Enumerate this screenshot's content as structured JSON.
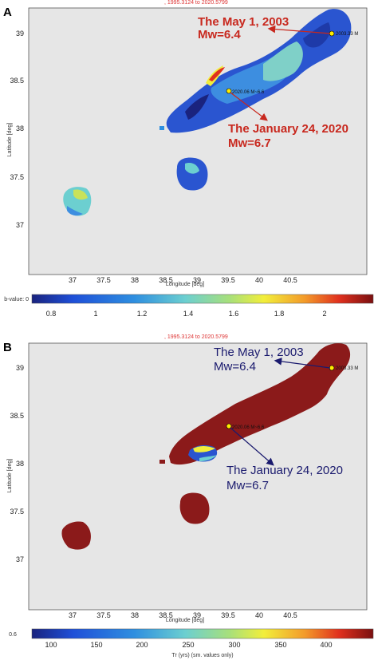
{
  "figure": {
    "panels": [
      {
        "id": "A",
        "letter": "A",
        "period": ", 1995.3124 to 2020.5799",
        "xlabel": "Longitude [deg]",
        "ylabel": "Latitude [deg]",
        "xticks": [
          "37",
          "37.5",
          "38",
          "38.5",
          "39",
          "39.5",
          "40",
          "40.5"
        ],
        "yticks": [
          "39",
          "38.5",
          "38",
          "37.5",
          "37"
        ],
        "colorbar": {
          "label": "b-value: 0",
          "ticks": [
            "0.8",
            "1",
            "1.2",
            "1.4",
            "1.6",
            "1.8",
            "2"
          ],
          "range": [
            0.7,
            2.2
          ]
        },
        "quakes": [
          {
            "lon": 40.5,
            "lat": 39.0,
            "label": "2003.33 M",
            "annotation_line1": "The May 1, 2003",
            "annotation_line2": "Mw=6.4"
          },
          {
            "lon": 39.1,
            "lat": 38.4,
            "label": "2020.06 M~6.6",
            "annotation_line1": "The January 24, 2020",
            "annotation_line2": "Mw=6.7"
          }
        ]
      },
      {
        "id": "B",
        "letter": "B",
        "period": ", 1995.3124 to 2020.5799",
        "xlabel": "Longitude [deg]",
        "ylabel": "Latitude [deg]",
        "xticks": [
          "37",
          "37.5",
          "38",
          "38.5",
          "39",
          "39.5",
          "40",
          "40.5"
        ],
        "yticks": [
          "39",
          "38.5",
          "38",
          "37.5",
          "37"
        ],
        "colorbar": {
          "label": "Tr (yrs) (sm. values only)",
          "side_label": "0.6",
          "ticks": [
            "100",
            "150",
            "200",
            "250",
            "300",
            "350",
            "400"
          ],
          "range": [
            60,
            410
          ]
        },
        "quakes": [
          {
            "lon": 40.5,
            "lat": 39.0,
            "label": "2003.33 M",
            "annotation_line1": "The May 1, 2003",
            "annotation_line2": "Mw=6.4"
          },
          {
            "lon": 39.1,
            "lat": 38.4,
            "label": "2020.06 M~6.6",
            "annotation_line1": "The January 24, 2020",
            "annotation_line2": "Mw=6.7"
          }
        ]
      }
    ],
    "colors": {
      "map_background": "#e6e6e6",
      "arrow_a": "#c8281e",
      "arrow_b": "#1a1a6e",
      "tr_fill": "#8b1a1a",
      "epicenter": "#ffee00"
    }
  }
}
